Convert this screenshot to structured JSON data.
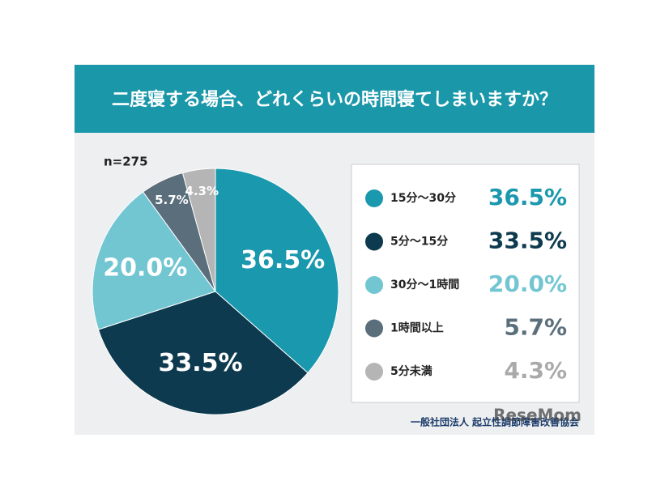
{
  "chart_data": {
    "type": "pie",
    "title": "二度寝する場合、どれくらいの時間寝てしまいますか？",
    "note": "n=275",
    "categories": [
      "15分〜30分",
      "5分〜15分",
      "30分〜1時間",
      "1時間以上",
      "5分未満"
    ],
    "values": [
      36.5,
      33.5,
      20.0,
      5.7,
      4.3
    ],
    "value_labels": [
      "36.5%",
      "33.5%",
      "20.0%",
      "5.7%",
      "4.3%"
    ],
    "colors": [
      "#1a98ad",
      "#0d3a4e",
      "#72c6d2",
      "#5a6e7c",
      "#b5b5b5"
    ],
    "source": "一般社団法人 起立性調節障害改善協会",
    "watermark": "ReseMom"
  }
}
